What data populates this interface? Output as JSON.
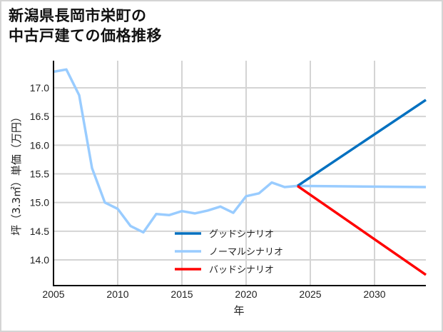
{
  "title": {
    "line1": "新潟県長岡市栄町の",
    "line2": "中古戸建ての価格推移"
  },
  "colors": {
    "good": "#0070C0",
    "normal": "#99CCFF",
    "bad": "#FF0000",
    "grid": "#d4d4d4",
    "axis": "#000000",
    "border": "#d4d4d4"
  },
  "chart_data": {
    "type": "line",
    "title": "新潟県長岡市栄町の中古戸建ての価格推移",
    "xlabel": "年",
    "ylabel": "坪（3.3㎡）単価（万円）",
    "xlim": [
      2005,
      2034
    ],
    "ylim": [
      13.6,
      17.5
    ],
    "xticks": [
      2005,
      2010,
      2015,
      2020,
      2025,
      2030
    ],
    "yticks": [
      14.0,
      14.5,
      15.0,
      15.5,
      16.0,
      16.5,
      17.0
    ],
    "ytick_labels": [
      "14.0",
      "14.5",
      "15.0",
      "15.5",
      "16.0",
      "16.5",
      "17.0"
    ],
    "grid": true,
    "legend_position": "center-lower",
    "series": [
      {
        "name": "グッドシナリオ",
        "color": "#0070C0",
        "x": [
          2024,
          2034
        ],
        "values": [
          15.29,
          16.79
        ]
      },
      {
        "name": "ノーマルシナリオ",
        "color": "#99CCFF",
        "x": [
          2005,
          2006,
          2007,
          2008,
          2009,
          2010,
          2011,
          2012,
          2013,
          2014,
          2015,
          2016,
          2017,
          2018,
          2019,
          2020,
          2021,
          2022,
          2023,
          2024,
          2034
        ],
        "values": [
          17.28,
          17.32,
          16.87,
          15.6,
          15.0,
          14.89,
          14.59,
          14.48,
          14.8,
          14.78,
          14.85,
          14.81,
          14.86,
          14.93,
          14.82,
          15.11,
          15.16,
          15.35,
          15.27,
          15.29,
          15.27
        ]
      },
      {
        "name": "バッドシナリオ",
        "color": "#FF0000",
        "x": [
          2024,
          2034
        ],
        "values": [
          15.29,
          13.74
        ]
      }
    ]
  },
  "axes": {
    "xlabel": "年",
    "ylabel": "坪（3.3㎡）単価（万円）"
  },
  "legend": {
    "items": [
      {
        "label": "グッドシナリオ",
        "color": "#0070C0"
      },
      {
        "label": "ノーマルシナリオ",
        "color": "#99CCFF"
      },
      {
        "label": "バッドシナリオ",
        "color": "#FF0000"
      }
    ]
  }
}
